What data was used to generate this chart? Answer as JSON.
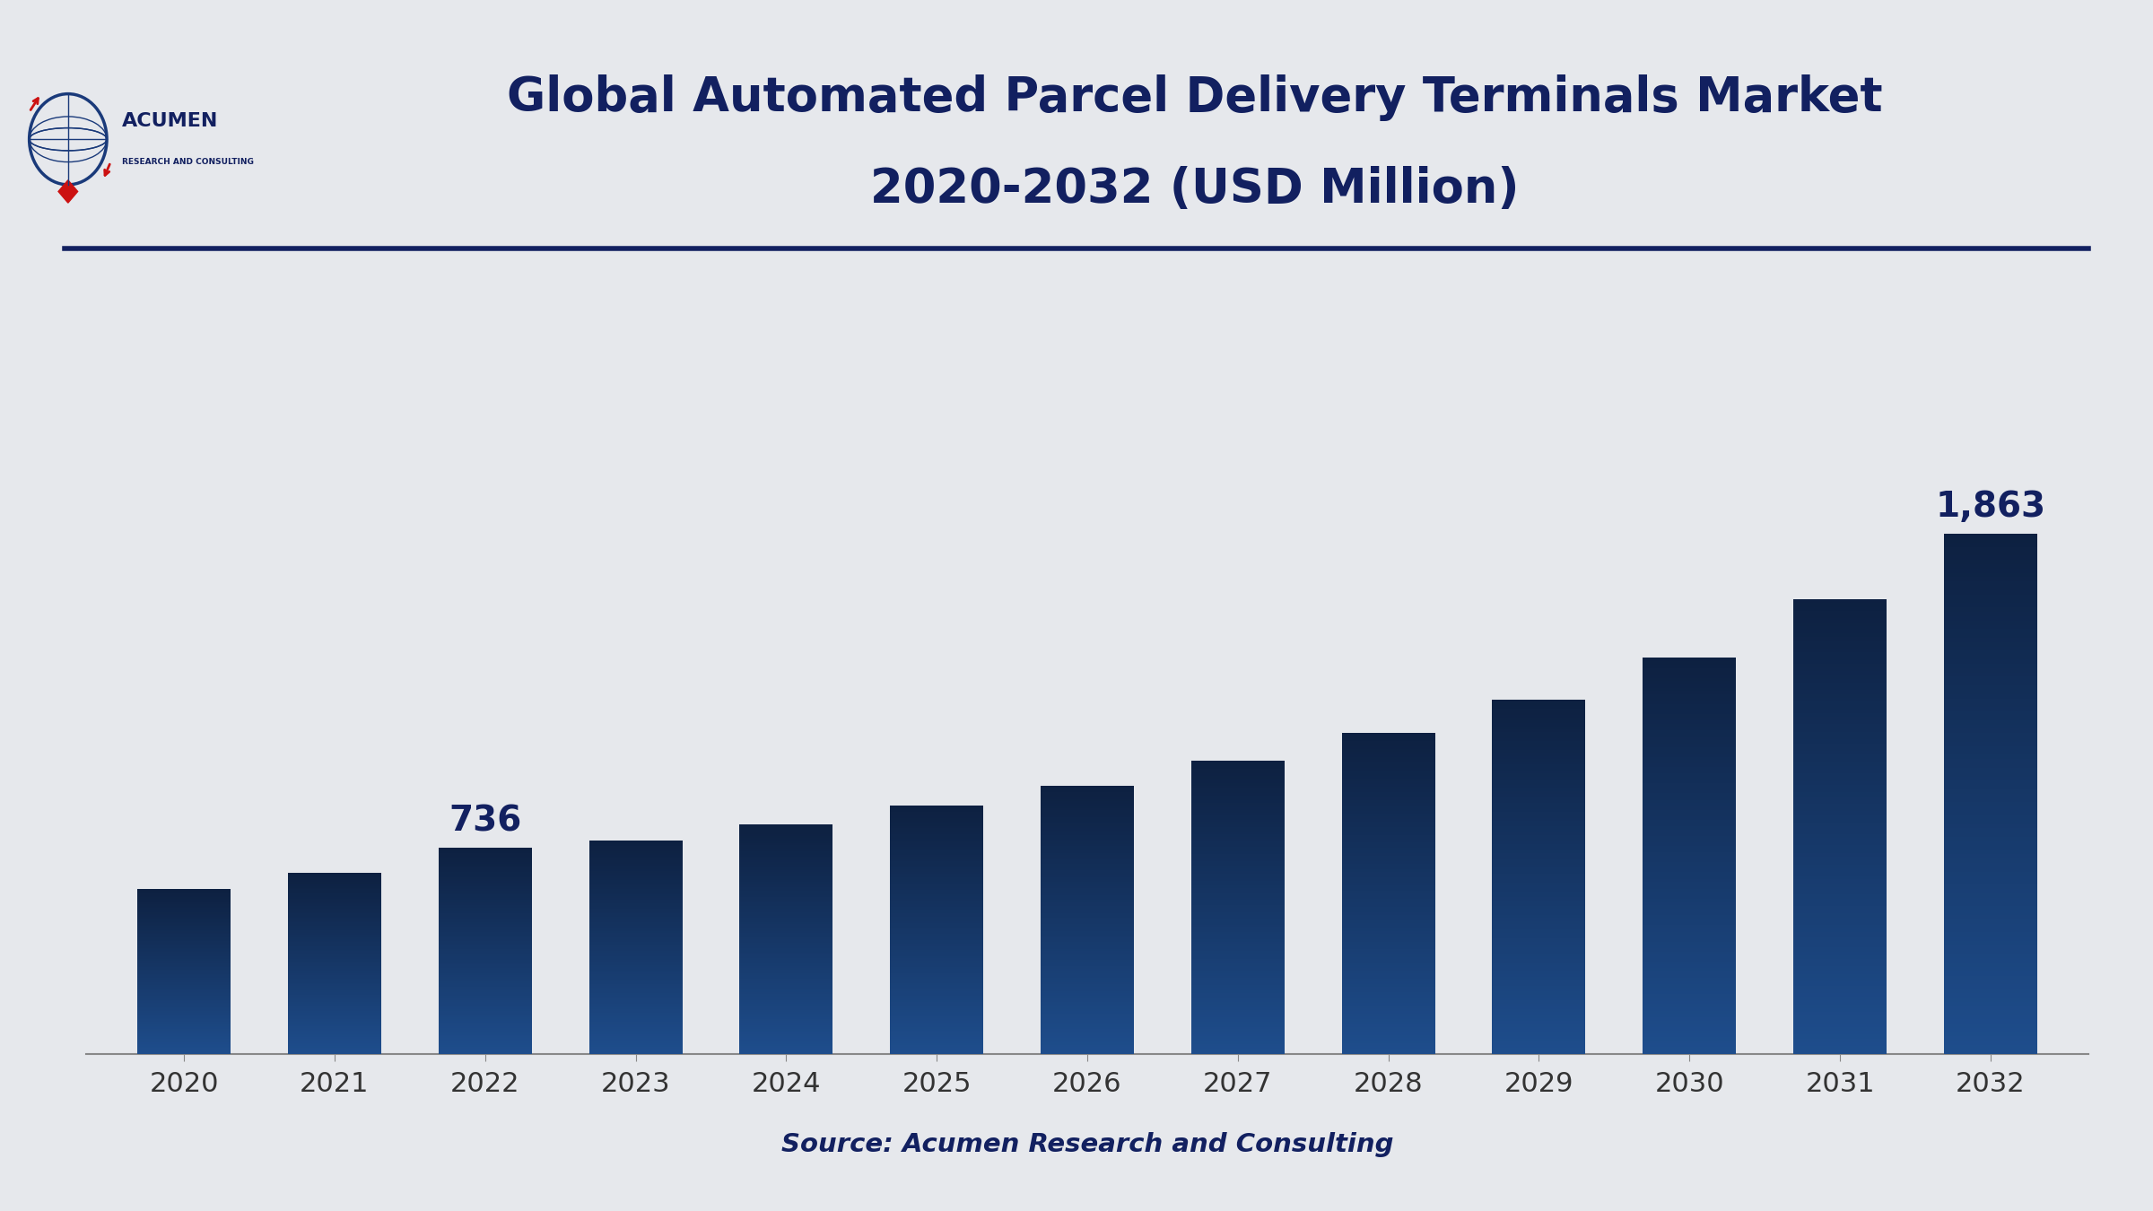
{
  "title_line1": "Global Automated Parcel Delivery Terminals Market",
  "title_line2": "2020-2032 (USD Million)",
  "years": [
    "2020",
    "2021",
    "2022",
    "2023",
    "2024",
    "2025",
    "2026",
    "2027",
    "2028",
    "2029",
    "2030",
    "2031",
    "2032"
  ],
  "values": [
    590,
    648,
    736,
    762,
    822,
    890,
    960,
    1048,
    1148,
    1268,
    1418,
    1628,
    1863
  ],
  "bar_color_bottom": "#1e4d8c",
  "bar_color_top": "#0d2040",
  "background_color": "#e6e8ec",
  "title_color": "#122060",
  "annotate_indices": [
    2,
    12
  ],
  "annotate_labels": [
    "736",
    "1,863"
  ],
  "source_text": "Source: Acumen Research and Consulting",
  "ylim_max": 2800,
  "header_line_color": "#122060",
  "tick_color": "#333333",
  "top_border_color": "#0d2040",
  "annot_fontsize": 28,
  "tick_fontsize": 22,
  "title_fontsize": 38,
  "source_fontsize": 21,
  "logo_globe_color": "#1a3a7a",
  "logo_red_color": "#cc1111",
  "logo_acumen_color": "#122060",
  "logo_sub_color": "#122060"
}
